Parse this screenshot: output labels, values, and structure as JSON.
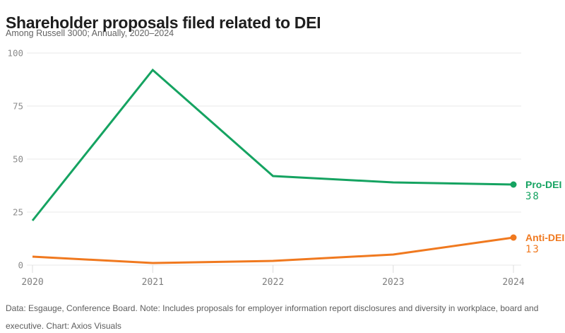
{
  "header": {
    "title": "Shareholder proposals filed related to DEI",
    "subtitle": "Among Russell 3000; Annually, 2020–2024"
  },
  "chart_data": {
    "type": "line",
    "x": [
      2020,
      2021,
      2022,
      2023,
      2024
    ],
    "x_tick_labels": [
      "2020",
      "2021",
      "2022",
      "2023",
      "2024"
    ],
    "y_ticks": [
      0,
      25,
      50,
      75,
      100
    ],
    "ylim": [
      0,
      100
    ],
    "grid": "horizontal",
    "legend_position": "right-end-labels",
    "title": "Shareholder proposals filed related to DEI",
    "subtitle": "Among Russell 3000; Annually, 2020–2024",
    "xlabel": "",
    "ylabel": "",
    "series": [
      {
        "name": "Pro-DEI",
        "values": [
          21,
          92,
          42,
          39,
          38
        ],
        "color": "#15a361",
        "end_label": "Pro-DEI",
        "end_value_label": "38"
      },
      {
        "name": "Anti-DEI",
        "values": [
          4,
          1,
          2,
          5,
          13
        ],
        "color": "#f0791f",
        "end_label": "Anti-DEI",
        "end_value_label": "13"
      }
    ]
  },
  "footer": {
    "text": "Data: Esgauge, Conference Board. Note: Includes proposals for employer information report disclosures and diversity in workplace, board and executive. Chart: Axios Visuals"
  },
  "colors": {
    "grid_line": "#e9e9e9",
    "tick_line": "#dcdcdc",
    "axis_text": "#8c8c8c",
    "title_text": "#1e1e1e",
    "muted_text": "#636363"
  }
}
